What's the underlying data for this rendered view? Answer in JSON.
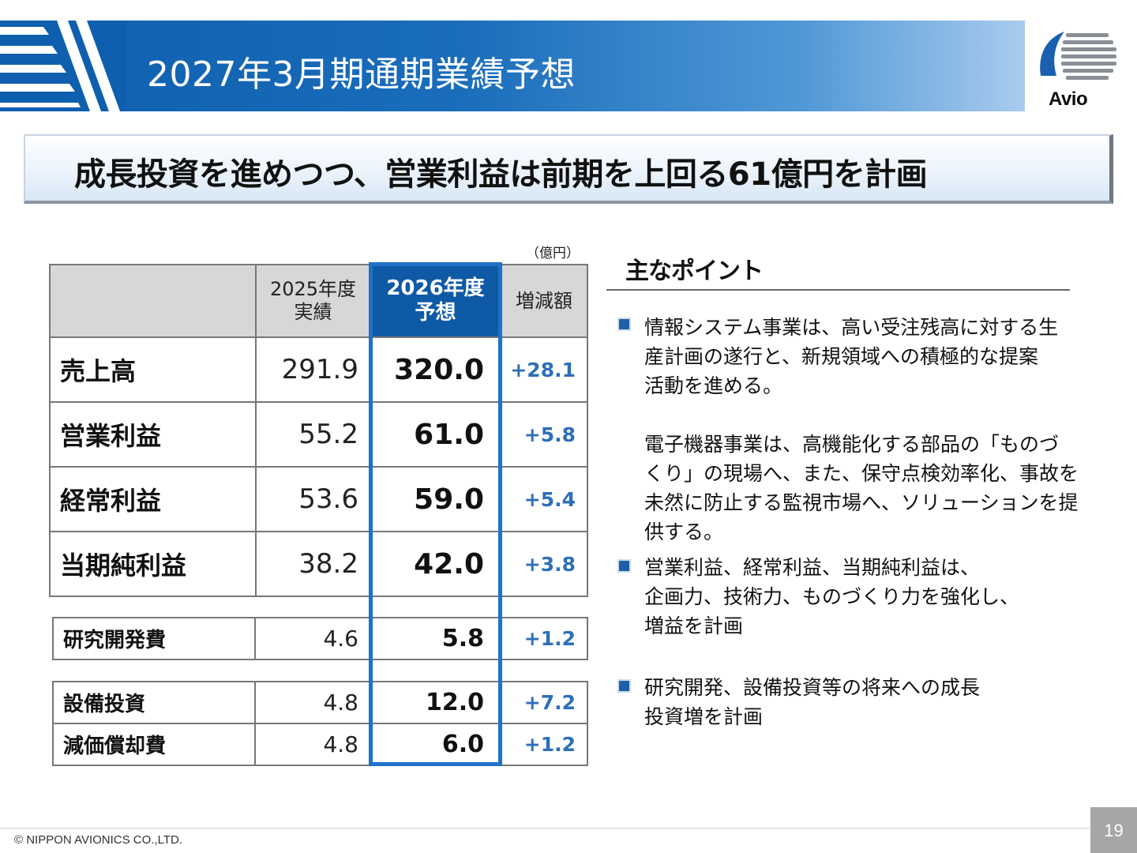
{
  "header": {
    "title": "2027年3月期通期業績予想",
    "logo_text": "Avio"
  },
  "headline": "成長投資を進めつつ、営業利益は前期を上回る61億円を計画",
  "table": {
    "unit": "（億円）",
    "columns": {
      "prev": [
        "2025年度",
        "実績"
      ],
      "fcst": [
        "2026年度",
        "予想"
      ],
      "diff": "増減額"
    },
    "main_rows": [
      {
        "label": "売上高",
        "prev": "291.9",
        "fcst": "320.0",
        "diff": "+28.1"
      },
      {
        "label": "営業利益",
        "prev": "55.2",
        "fcst": "61.0",
        "diff": "+5.8"
      },
      {
        "label": "経常利益",
        "prev": "53.6",
        "fcst": "59.0",
        "diff": "+5.4"
      },
      {
        "label": "当期純利益",
        "prev": "38.2",
        "fcst": "42.0",
        "diff": "+3.8"
      }
    ],
    "rd_row": {
      "label": "研究開発費",
      "prev": "4.6",
      "fcst": "5.8",
      "diff": "+1.2"
    },
    "capex_rows": [
      {
        "label": "設備投資",
        "prev": "4.8",
        "fcst": "12.0",
        "diff": "+7.2"
      },
      {
        "label": "減価償却費",
        "prev": "4.8",
        "fcst": "6.0",
        "diff": "+1.2"
      }
    ]
  },
  "points": {
    "title": "主なポイント",
    "items": [
      "情報システム事業は、高い受注残高に対する生\n産計画の遂行と、新規領域への積極的な提案\n活動を進める。\n\n電子機器事業は、高機能化する部品の「ものづ\nくり」の現場へ、また、保守点検効率化、事故を\n未然に防止する監視市場へ、ソリューションを提\n供する。",
      "営業利益、経常利益、当期純利益は、\n企画力、技術力、ものづくり力を強化し、\n増益を計画",
      "研究開発、設備投資等の将来への成長\n投資増を計画"
    ]
  },
  "footer": {
    "copyright": "© NIPPON AVIONICS CO.,LTD.",
    "page": "19"
  },
  "colors": {
    "header_blue": "#0e5fae",
    "highlight_blue": "#1f72c7",
    "diff_blue": "#2d6fb8",
    "header_cell_gray": "#d7d7d7"
  }
}
